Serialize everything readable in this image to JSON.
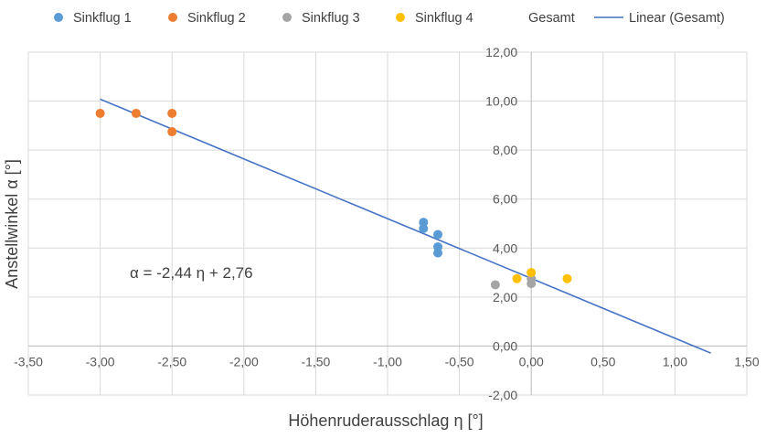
{
  "chart_data": {
    "type": "scatter",
    "xlabel": "Höhenruderausschlag η [°]",
    "ylabel": "Anstellwinkel α [°]",
    "xlim": [
      -3.5,
      1.5
    ],
    "ylim": [
      -2,
      12
    ],
    "x_ticks": [
      "-3,50",
      "-3,00",
      "-2,50",
      "-2,00",
      "-1,50",
      "-1,00",
      "-0,50",
      "0,00",
      "0,50",
      "1,00",
      "1,50"
    ],
    "y_ticks": [
      "-2,00",
      "0,00",
      "2,00",
      "4,00",
      "6,00",
      "8,00",
      "10,00",
      "12,00"
    ],
    "grid": true,
    "legend_position": "top",
    "series": [
      {
        "name": "Sinkflug 1",
        "color": "#5B9BD5",
        "points": [
          [
            -0.75,
            5.05
          ],
          [
            -0.75,
            4.8
          ],
          [
            -0.65,
            4.55
          ],
          [
            -0.65,
            4.05
          ],
          [
            -0.65,
            3.8
          ]
        ]
      },
      {
        "name": "Sinkflug 2",
        "color": "#ED7D31",
        "points": [
          [
            -3.0,
            9.5
          ],
          [
            -2.75,
            9.5
          ],
          [
            -2.5,
            9.5
          ],
          [
            -2.5,
            8.75
          ]
        ]
      },
      {
        "name": "Sinkflug 3",
        "color": "#A5A5A5",
        "points": [
          [
            -0.25,
            2.5
          ],
          [
            0.0,
            2.55
          ],
          [
            0.0,
            2.75
          ]
        ]
      },
      {
        "name": "Sinkflug 4",
        "color": "#FFC000",
        "points": [
          [
            -0.1,
            2.75
          ],
          [
            0.0,
            3.0
          ],
          [
            0.25,
            2.75
          ]
        ]
      },
      {
        "name": "Gesamt",
        "color": "none",
        "points": []
      }
    ],
    "trendline": {
      "name": "Linear (Gesamt)",
      "color": "#4472C4",
      "slope": -2.44,
      "intercept": 2.76,
      "x_range": [
        -3.0,
        1.25
      ]
    },
    "annotation": "α  = -2,44 η + 2,76"
  }
}
